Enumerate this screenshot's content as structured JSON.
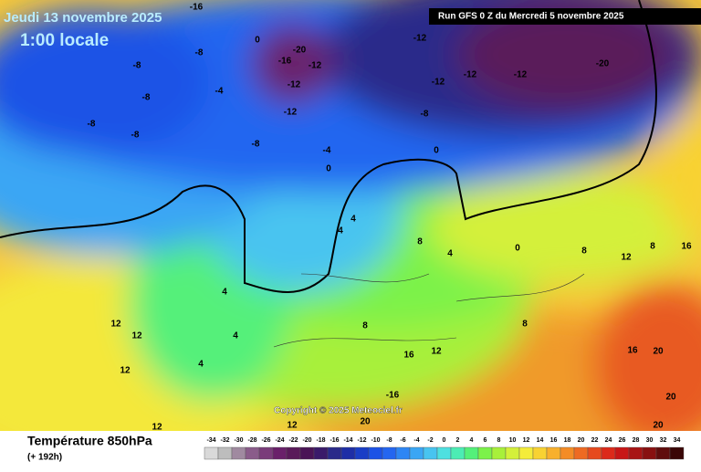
{
  "header": {
    "date": "Jeudi 13 novembre 2025",
    "time": "1:00 locale",
    "run": "Run GFS 0 Z du Mercredi 5 novembre 2025"
  },
  "copyright": "Copyright © 2025 Meteociel.fr",
  "footer": {
    "title": "Température 850hPa",
    "lead": "(+ 192h)"
  },
  "contour_labels": [
    -16,
    -12,
    -20,
    -12,
    -12,
    -12,
    -20,
    -16,
    -12,
    -12,
    -8,
    -8,
    -8,
    -8,
    -8,
    -8,
    -8,
    -4,
    -4,
    -12,
    0,
    0,
    0,
    4,
    4,
    8,
    4,
    0,
    8,
    12,
    16,
    8,
    4,
    4,
    12,
    12,
    12,
    8,
    12,
    16,
    16,
    20,
    20,
    20,
    -16,
    20,
    12,
    12,
    4,
    8
  ],
  "colorbar": {
    "ticks": [
      -34,
      -32,
      -30,
      -28,
      -26,
      -24,
      -22,
      -20,
      -18,
      -16,
      -14,
      -12,
      -10,
      -8,
      -6,
      -4,
      -2,
      0,
      2,
      4,
      6,
      8,
      10,
      12,
      14,
      16,
      18,
      20,
      22,
      24,
      26,
      28,
      30,
      32,
      34
    ],
    "colors": [
      "#d9d9d9",
      "#bdbdbd",
      "#a08aa0",
      "#8a5c8a",
      "#7a3c7a",
      "#6a206a",
      "#5a1a5a",
      "#4a1456",
      "#3a1a6a",
      "#2a2a8a",
      "#1e2ea6",
      "#1a3ec6",
      "#1c52e6",
      "#2466f0",
      "#2e86f4",
      "#3aa6f4",
      "#48c4f0",
      "#4ee0e0",
      "#4cecb4",
      "#54f07a",
      "#7cf24a",
      "#a8f03a",
      "#d4f03a",
      "#f4ec3a",
      "#f8d232",
      "#f8b02c",
      "#f48c26",
      "#ee6a22",
      "#e64a1e",
      "#dc2a1a",
      "#c81616",
      "#a81414",
      "#881010",
      "#600c0c",
      "#3a0606"
    ]
  }
}
